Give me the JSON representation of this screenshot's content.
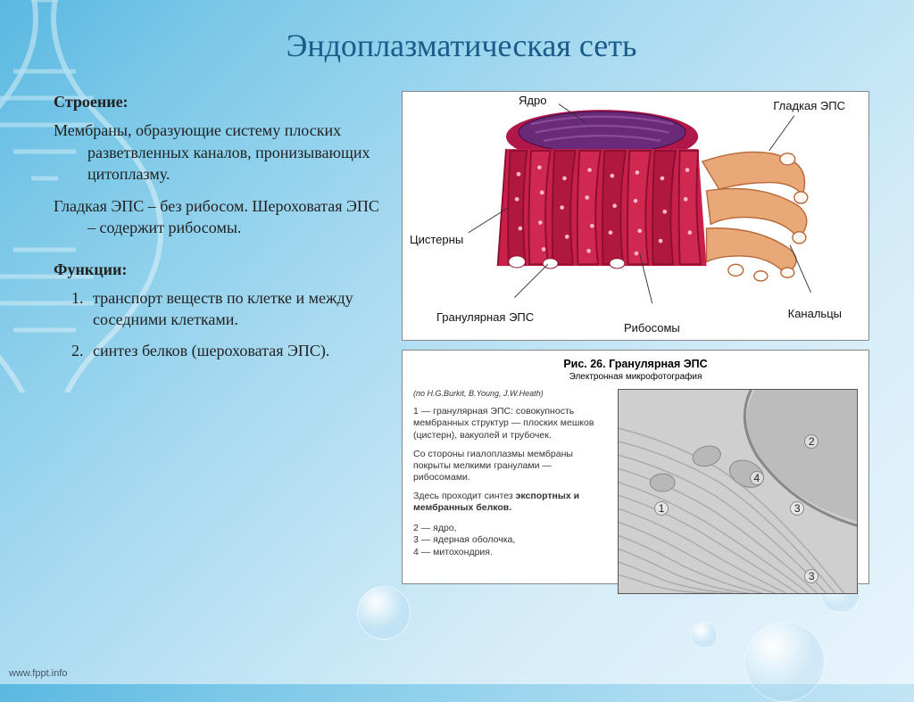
{
  "title": "Эндоплазматическая сеть",
  "structure": {
    "heading": "Строение:",
    "para1": "Мембраны, образующие систему плоских разветвленных каналов, пронизывающих цитоплазму.",
    "para2": "Гладкая ЭПС – без рибосом. Шероховатая ЭПС – содержит рибосомы."
  },
  "functions": {
    "heading": "Функции:",
    "items": [
      "транспорт веществ по клетке и между соседними клетками.",
      "синтез белков (шероховатая ЭПС)."
    ]
  },
  "er_diagram": {
    "labels": {
      "nucleus": "Ядро",
      "smooth_er": "Гладкая ЭПС",
      "cisternae": "Цистерны",
      "granular_er": "Гранулярная ЭПС",
      "ribosomes": "Рибосомы",
      "tubules": "Канальцы"
    },
    "colors": {
      "rough_er": "#c91f4a",
      "rough_er_dark": "#8a0f30",
      "smooth_er": "#d88a5a",
      "smooth_er_light": "#e8a878",
      "nucleus_outer": "#b0184a",
      "nucleus_inner": "#6a2a78",
      "ribosome": "#f8b8c8"
    }
  },
  "micrograph": {
    "fig_title": "Рис. 26. Гранулярная ЭПС",
    "fig_subtitle": "Электронная микрофотография",
    "credit": "(по H.G.Burkit, B.Young, J.W.Heath)",
    "desc1": "1 — гранулярная ЭПС: совокупность мембранных структур — плоских мешков (цистерн), вакуолей и трубочек.",
    "desc2": "Со стороны гиалоплазмы мембраны покрыты мелкими гранулами — рибосомами.",
    "desc3_prefix": "Здесь проходит синтез ",
    "desc3_bold": "экспортных и мембранных белков.",
    "legend": [
      "2 — ядро,",
      "3 — ядерная оболочка,",
      "4 — митохондрия."
    ],
    "markers": [
      {
        "n": "1",
        "x": 15,
        "y": 55
      },
      {
        "n": "2",
        "x": 78,
        "y": 22
      },
      {
        "n": "3",
        "x": 72,
        "y": 55
      },
      {
        "n": "4",
        "x": 55,
        "y": 40
      },
      {
        "n": "3",
        "x": 78,
        "y": 88
      }
    ]
  },
  "footer": "www.fppt.info",
  "styling": {
    "title_color": "#1a5b8a",
    "title_fontsize": 36,
    "body_fontsize": 18,
    "bg_gradient": [
      "#5ab8e0",
      "#7bc8e8",
      "#a8daf0",
      "#d4ecf8",
      "#e8f4fc"
    ],
    "font_family": "Georgia",
    "micro_font_family": "Arial"
  }
}
